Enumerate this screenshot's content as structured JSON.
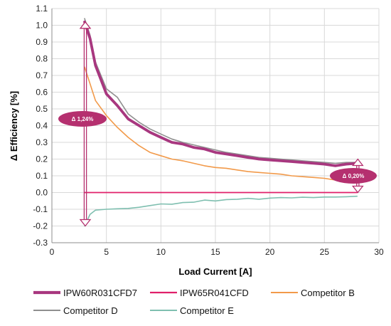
{
  "chart_data": {
    "type": "line",
    "xlabel": "Load Current [A]",
    "ylabel": "Δ Efficiency [%]",
    "xlim": [
      0,
      30
    ],
    "ylim": [
      -0.3,
      1.1
    ],
    "xticks": [
      "0",
      "5",
      "10",
      "15",
      "20",
      "25",
      "30"
    ],
    "yticks": [
      "-0.3",
      "-0.2",
      "-0.1",
      "0.0",
      "0.1",
      "0.2",
      "0.3",
      "0.4",
      "0.5",
      "0.6",
      "0.7",
      "0.8",
      "0.9",
      "1.0",
      "1.1"
    ],
    "grid": true,
    "legend_position": "bottom",
    "series": [
      {
        "name": "IPW60R031CFD7",
        "color": "#a8377f",
        "x": [
          3,
          3.5,
          4,
          5,
          6,
          7,
          8,
          9,
          10,
          11,
          12,
          13,
          14,
          15,
          16,
          17,
          18,
          19,
          20,
          21,
          22,
          23,
          24,
          25,
          26,
          27,
          28
        ],
        "values": [
          1.02,
          0.92,
          0.76,
          0.59,
          0.52,
          0.44,
          0.4,
          0.36,
          0.33,
          0.3,
          0.29,
          0.27,
          0.26,
          0.24,
          0.23,
          0.22,
          0.21,
          0.2,
          0.195,
          0.19,
          0.185,
          0.18,
          0.175,
          0.17,
          0.16,
          0.17,
          0.175
        ]
      },
      {
        "name": "IPW65R041CFD",
        "color": "#e0206a",
        "x": [
          3,
          28
        ],
        "values": [
          0.0,
          0.0
        ]
      },
      {
        "name": "Competitor B",
        "color": "#f29a4a",
        "x": [
          3,
          3.5,
          4,
          5,
          6,
          7,
          8,
          9,
          10,
          11,
          12,
          13,
          14,
          15,
          16,
          17,
          18,
          19,
          20,
          21,
          22,
          23,
          24,
          25,
          26,
          27,
          28
        ],
        "values": [
          0.75,
          0.65,
          0.55,
          0.46,
          0.39,
          0.33,
          0.28,
          0.24,
          0.22,
          0.2,
          0.19,
          0.175,
          0.16,
          0.15,
          0.145,
          0.135,
          0.125,
          0.12,
          0.115,
          0.11,
          0.1,
          0.095,
          0.09,
          0.085,
          0.075,
          0.07,
          0.07
        ]
      },
      {
        "name": "Competitor D",
        "color": "#8f8f8f",
        "x": [
          3,
          3.5,
          4,
          5,
          6,
          7,
          8,
          9,
          10,
          11,
          12,
          13,
          14,
          15,
          16,
          17,
          18,
          19,
          20,
          21,
          22,
          23,
          24,
          25,
          26,
          27,
          28
        ],
        "values": [
          1.04,
          0.94,
          0.78,
          0.62,
          0.57,
          0.47,
          0.42,
          0.38,
          0.35,
          0.32,
          0.3,
          0.285,
          0.27,
          0.255,
          0.24,
          0.23,
          0.22,
          0.21,
          0.205,
          0.2,
          0.195,
          0.19,
          0.185,
          0.18,
          0.175,
          0.18,
          0.18
        ]
      },
      {
        "name": "Competitor E",
        "color": "#7fbfb0",
        "x": [
          3,
          3.5,
          4,
          5,
          6,
          7,
          8,
          9,
          10,
          11,
          12,
          13,
          14,
          15,
          16,
          17,
          18,
          19,
          20,
          21,
          22,
          23,
          24,
          25,
          26,
          27,
          28
        ],
        "values": [
          -0.2,
          -0.13,
          -0.105,
          -0.1,
          -0.097,
          -0.095,
          -0.088,
          -0.078,
          -0.068,
          -0.07,
          -0.06,
          -0.058,
          -0.045,
          -0.05,
          -0.042,
          -0.04,
          -0.035,
          -0.04,
          -0.033,
          -0.03,
          -0.032,
          -0.028,
          -0.03,
          -0.027,
          -0.027,
          -0.025,
          -0.022
        ]
      }
    ],
    "annotations": [
      {
        "text": "Δ 1,24%",
        "x": 3,
        "y_from": -0.2,
        "y_to": 1.02,
        "color": "#b5306f"
      },
      {
        "text": "Δ 0,20%",
        "x": 28,
        "y_from": 0.0,
        "y_to": 0.2,
        "color": "#b5306f"
      }
    ]
  }
}
